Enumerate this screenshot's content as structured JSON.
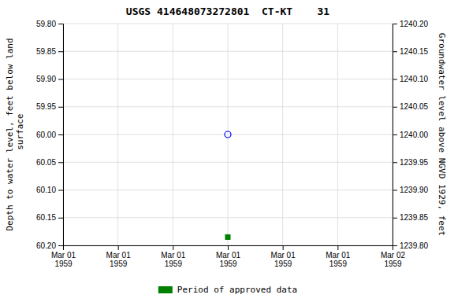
{
  "chart_data": {
    "type": "scatter",
    "title": "USGS 414648073272801  CT-KT    31",
    "y_label": "Depth to water level, feet below land\n surface",
    "y2_label": "Groundwater level above NGVD 1929, feet",
    "categories": [
      "Mar 01\n1959",
      "Mar 01\n1959",
      "Mar 01\n1959",
      "Mar 01\n1959",
      "Mar 01\n1959",
      "Mar 01\n1959",
      "Mar 02\n1959"
    ],
    "series": [
      {
        "color": "blue",
        "marker": "open-circle",
        "values": [
          null,
          null,
          null,
          60.0,
          null,
          null,
          null
        ]
      },
      {
        "name": "Period of approved data",
        "color": "#008000",
        "marker": "square",
        "values": [
          null,
          null,
          null,
          60.185,
          null,
          null,
          null
        ]
      }
    ],
    "ylim": [
      60.2,
      59.8
    ],
    "yticks": [
      {
        "value": 59.8,
        "label": "59.80"
      },
      59.85,
      {
        "value": 59.9,
        "label": "59.90"
      },
      59.95,
      {
        "value": 60.0,
        "label": "60.00"
      },
      60.05,
      {
        "value": 60.1,
        "label": "60.10"
      },
      60.15,
      {
        "value": 60.2,
        "label": "60.20"
      }
    ],
    "y2lim": [
      1239.8,
      1240.2
    ],
    "y2ticks": [
      {
        "value": 1240.2,
        "label": "1240.20"
      },
      1240.15,
      {
        "value": 1240.1,
        "label": "1240.10"
      },
      1240.05,
      {
        "value": 1240.0,
        "label": "1240.00"
      },
      1239.95,
      {
        "value": 1239.9,
        "label": "1239.90"
      },
      1239.85,
      {
        "value": 1239.8,
        "label": "1239.80"
      }
    ],
    "grid": true,
    "legend": "bottom"
  }
}
